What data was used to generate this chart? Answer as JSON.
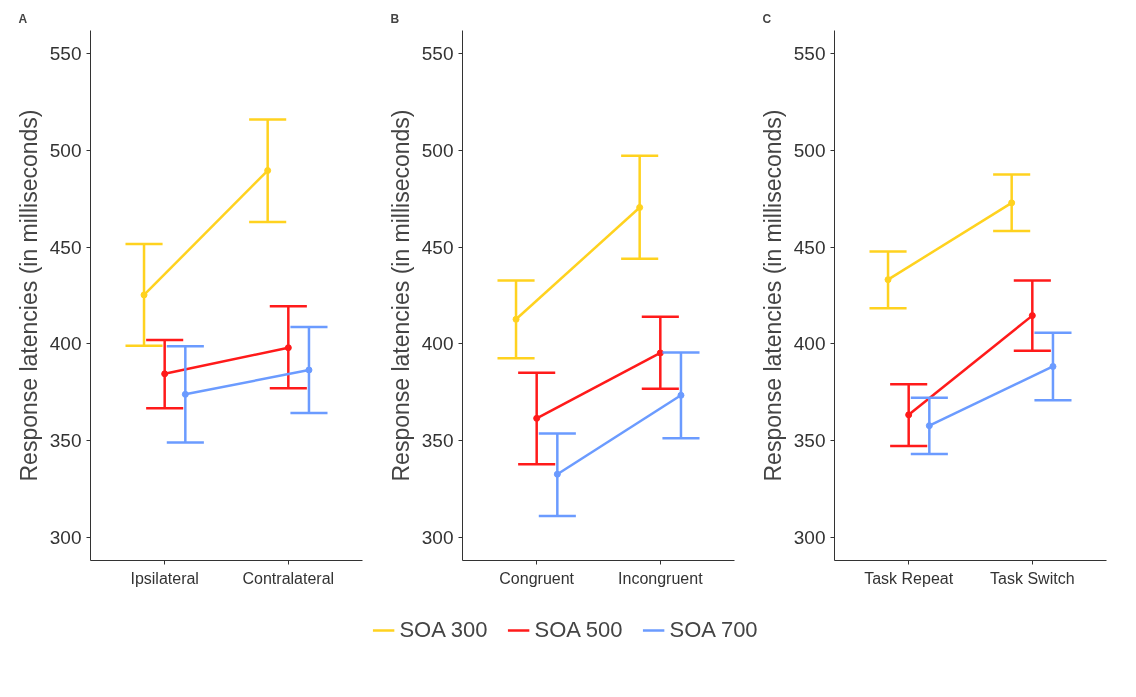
{
  "chart_data": [
    {
      "type": "line",
      "title": "A",
      "ylabel": "Response latencies (in milliseconds)",
      "categories": [
        "Ipsilateral",
        "Contralateral"
      ],
      "ylim": [
        288,
        562
      ],
      "yticks": [
        300,
        350,
        400,
        450,
        500,
        550
      ],
      "grid": false,
      "legend": "bottom",
      "marker": "circle",
      "line_style": "solid",
      "series": [
        {
          "name": "SOA 300",
          "color": "#ffd21f",
          "values": [
            425.3,
            489.6
          ],
          "errors": [
            [
              399,
              451.6
            ],
            [
              463,
              516
            ]
          ]
        },
        {
          "name": "SOA 500",
          "color": "#ff1a1a",
          "values": [
            384.5,
            398
          ],
          "errors": [
            [
              366.7,
              402
            ],
            [
              377,
              419.5
            ]
          ]
        },
        {
          "name": "SOA 700",
          "color": "#6b9bff",
          "values": [
            373.9,
            386.5
          ],
          "errors": [
            [
              349,
              398.8
            ],
            [
              364.2,
              408.7
            ]
          ]
        }
      ]
    },
    {
      "type": "line",
      "title": "B",
      "ylabel": "Response latencies (in milliseconds)",
      "categories": [
        "Congruent",
        "Incongruent"
      ],
      "ylim": [
        288,
        562
      ],
      "yticks": [
        300,
        350,
        400,
        450,
        500,
        550
      ],
      "grid": false,
      "marker": "circle",
      "line_style": "solid",
      "series": [
        {
          "color": "#ffd21f",
          "values": [
            412.7,
            470.5
          ],
          "errors": [
            [
              392.6,
              432.7
            ],
            [
              444,
              497.2
            ]
          ]
        },
        {
          "color": "#ff1a1a",
          "values": [
            361.5,
            395.3
          ],
          "errors": [
            [
              337.7,
              385
            ],
            [
              376.8,
              414
            ]
          ]
        },
        {
          "color": "#6b9bff",
          "values": [
            332.6,
            373.4
          ],
          "errors": [
            [
              311,
              353.7
            ],
            [
              351.2,
              395.5
            ]
          ]
        }
      ]
    },
    {
      "type": "line",
      "title": "C",
      "ylabel": "Response latencies (in milliseconds)",
      "categories": [
        "Task Repeat",
        "Task Switch"
      ],
      "ylim": [
        288,
        562
      ],
      "yticks": [
        300,
        350,
        400,
        450,
        500,
        550
      ],
      "grid": false,
      "marker": "circle",
      "line_style": "solid",
      "series": [
        {
          "color": "#ffd21f",
          "values": [
            433.2,
            472.9
          ],
          "errors": [
            [
              418.4,
              447.8
            ],
            [
              458.3,
              487.5
            ]
          ]
        },
        {
          "color": "#ff1a1a",
          "values": [
            363.3,
            414.6
          ],
          "errors": [
            [
              347.2,
              379.1
            ],
            [
              396.4,
              432.8
            ]
          ]
        },
        {
          "color": "#6b9bff",
          "values": [
            357.7,
            388.3
          ],
          "errors": [
            [
              343.1,
              372.1
            ],
            [
              370.8,
              405.8
            ]
          ]
        }
      ]
    }
  ]
}
